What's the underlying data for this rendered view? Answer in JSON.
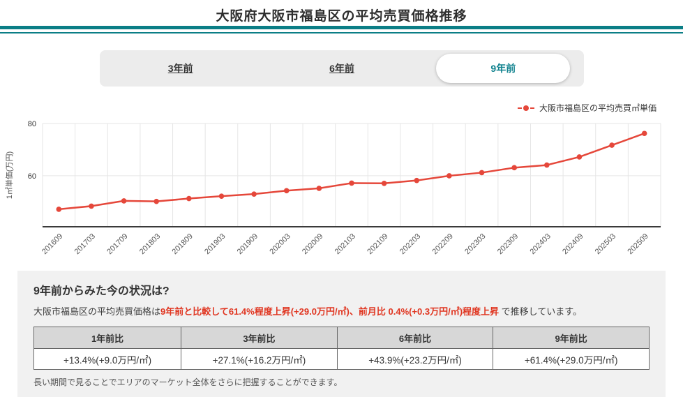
{
  "page": {
    "title": "大阪府大阪市福島区の平均売買価格推移"
  },
  "tabs": {
    "items": [
      {
        "label": "3年前",
        "active": false
      },
      {
        "label": "6年前",
        "active": false
      },
      {
        "label": "9年前",
        "active": true
      }
    ]
  },
  "legend": {
    "label": "大阪市福島区の平均売買㎡単価"
  },
  "chart_data": {
    "type": "line",
    "x": [
      "201609",
      "201703",
      "201709",
      "201803",
      "201809",
      "201903",
      "201909",
      "202003",
      "202009",
      "202103",
      "202109",
      "202203",
      "202209",
      "202303",
      "202309",
      "202403",
      "202409",
      "202503",
      "202509"
    ],
    "series": [
      {
        "name": "大阪市福島区の平均売買㎡単価",
        "color": "#e5473a",
        "values": [
          47.2,
          48.4,
          50.4,
          50.2,
          51.3,
          52.2,
          53.0,
          54.3,
          55.2,
          57.2,
          57.1,
          58.2,
          60.0,
          61.2,
          63.1,
          64.1,
          67.2,
          71.7,
          76.2
        ]
      }
    ],
    "ylabel": "1㎡単価(万円)",
    "ylim": [
      40.5,
      80
    ],
    "yticks": [
      60,
      80
    ],
    "grid": true,
    "legend_position": "top-right"
  },
  "summary": {
    "heading": "9年前からみた今の状況は?",
    "intro_plain": "大阪市福島区の平均売買価格は",
    "intro_highlight": "9年前と比較して61.4%程度上昇(+29.0万円/㎡)、前月比 0.4%(+0.3万円/㎡)程度上昇",
    "intro_suffix": " で推移しています。",
    "table": {
      "headers": [
        "1年前比",
        "3年前比",
        "6年前比",
        "9年前比"
      ],
      "values": [
        "+13.4%(+9.0万円/㎡)",
        "+27.1%(+16.2万円/㎡)",
        "+43.9%(+23.2万円/㎡)",
        "+61.4%(+29.0万円/㎡)"
      ]
    },
    "note": "長い期間で見ることでエリアのマーケット全体をさらに把握することができます。"
  },
  "colors": {
    "accent_teal": "#0b7e86",
    "active_tab_text": "#10828e",
    "line_red": "#e5473a",
    "highlight_red": "#e03520"
  }
}
